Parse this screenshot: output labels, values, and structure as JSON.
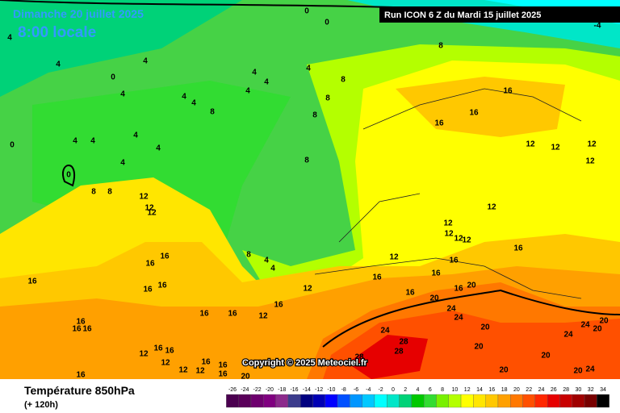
{
  "header": {
    "day": "Dimanche 20 juillet 2025",
    "hour": "8:00 locale",
    "run": "Run ICON 6 Z du Mardi 15 juillet 2025"
  },
  "copyright": "Copyright © 2025 Meteociel.fr",
  "footer": {
    "title": "Température 850hPa",
    "lead": "(+ 120h)"
  },
  "legend": {
    "ticks": [
      -26,
      -24,
      -22,
      -20,
      -18,
      -16,
      -14,
      -12,
      -10,
      -8,
      -6,
      -4,
      -2,
      0,
      2,
      4,
      6,
      8,
      10,
      12,
      14,
      16,
      18,
      20,
      22,
      24,
      26,
      28,
      30,
      32,
      34
    ],
    "colors": [
      "#4b0050",
      "#5a005a",
      "#6e006e",
      "#800080",
      "#8c2a8c",
      "#3c3c8c",
      "#000080",
      "#0000b4",
      "#0000ff",
      "#0050ff",
      "#0096ff",
      "#00c8ff",
      "#00ffff",
      "#00e6c8",
      "#00d278",
      "#00c800",
      "#32dc32",
      "#78f000",
      "#b4ff00",
      "#ffff00",
      "#ffe600",
      "#ffc800",
      "#ffa000",
      "#ff7800",
      "#ff5000",
      "#ff2800",
      "#e60000",
      "#c80000",
      "#a00000",
      "#780000",
      "#000000"
    ]
  },
  "contour_labels": [
    0,
    0,
    4,
    4,
    4,
    4,
    0,
    4,
    4,
    4,
    8,
    4,
    4,
    8,
    4,
    8,
    8,
    4,
    4,
    4,
    4,
    4,
    0,
    0,
    8,
    8,
    12,
    12,
    12,
    8,
    8,
    16,
    16,
    16,
    12,
    12,
    12,
    12,
    12,
    12,
    12,
    12,
    12,
    12,
    16,
    16,
    16,
    20,
    16,
    16,
    16,
    12,
    8,
    4,
    4,
    16,
    16,
    16,
    16,
    16,
    16,
    16,
    16,
    12,
    20,
    24,
    24,
    24,
    28,
    28,
    28,
    20,
    20,
    20,
    24,
    24,
    20,
    20,
    20,
    24,
    20,
    16,
    16,
    16,
    16,
    16,
    12,
    12,
    12,
    12,
    16,
    16,
    16,
    20,
    16,
    -4
  ]
}
